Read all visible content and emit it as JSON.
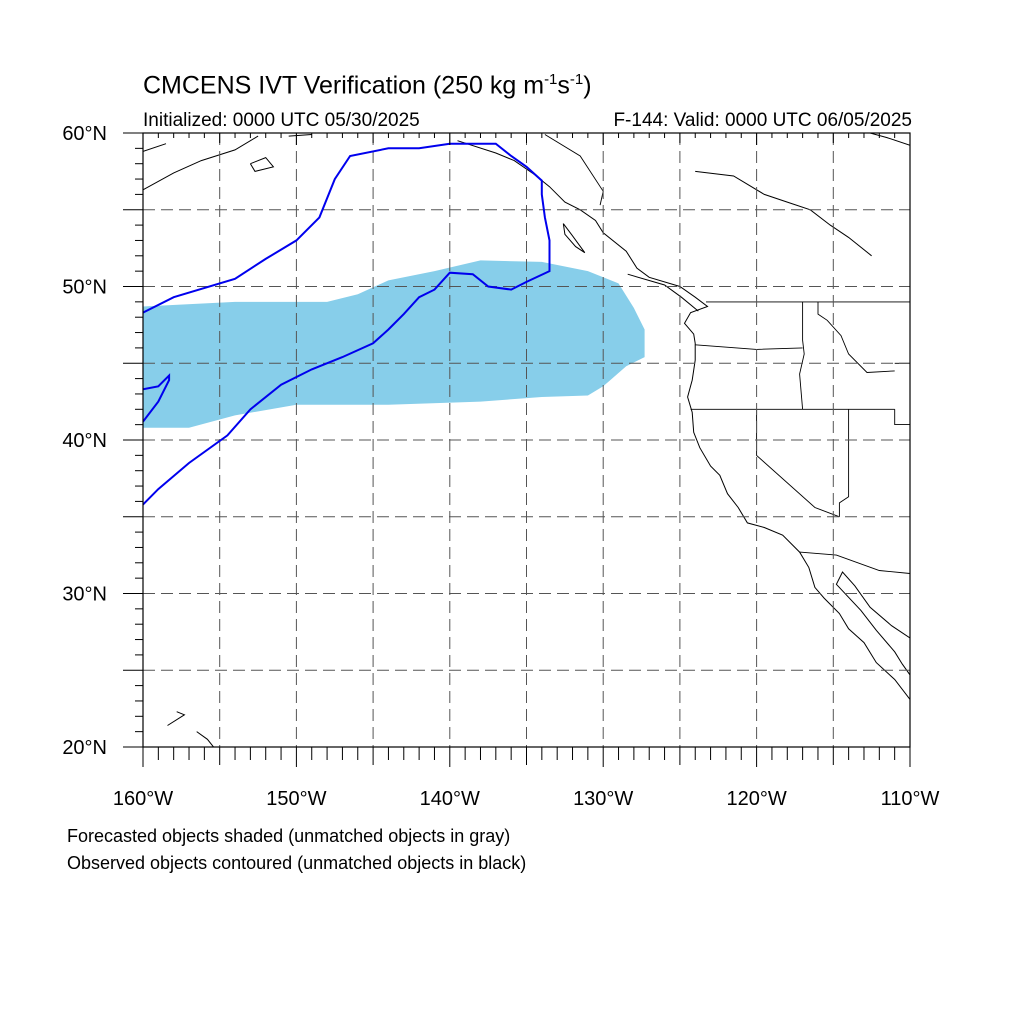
{
  "title": {
    "main": "CMCENS IVT Verification (250 kg m",
    "exp1": "-1",
    "mid": "s",
    "exp2": "-1",
    "close": ")"
  },
  "subtitle": {
    "initialized": "Initialized: 0000 UTC 05/30/2025",
    "valid": "F-144: Valid: 0000 UTC 06/05/2025"
  },
  "captions": [
    "Forecasted objects shaded (unmatched objects in gray)",
    "Observed objects contoured (unmatched objects in black)"
  ],
  "colors": {
    "forecast_fill": "#87ceea",
    "observed_contour": "#0000ee",
    "coastline": "#000000",
    "grid": "#555555"
  },
  "map": {
    "lon_range": [
      -160,
      -110
    ],
    "lat_range": [
      20,
      60
    ],
    "lon_ticks": [
      {
        "value": -160,
        "label": "160°W"
      },
      {
        "value": -150,
        "label": "150°W"
      },
      {
        "value": -140,
        "label": "140°W"
      },
      {
        "value": -130,
        "label": "130°W"
      },
      {
        "value": -120,
        "label": "120°W"
      },
      {
        "value": -110,
        "label": "110°W"
      }
    ],
    "lat_ticks": [
      {
        "value": 60,
        "label": "60°N"
      },
      {
        "value": 50,
        "label": "50°N"
      },
      {
        "value": 40,
        "label": "40°N"
      },
      {
        "value": 30,
        "label": "30°N"
      },
      {
        "value": 20,
        "label": "20°N"
      }
    ],
    "grid_lons": [
      -155,
      -150,
      -145,
      -140,
      -135,
      -130,
      -125,
      -120,
      -115
    ],
    "grid_lats": [
      25,
      30,
      35,
      40,
      45,
      50,
      55
    ]
  },
  "forecast_object": [
    [
      -160,
      48.7
    ],
    [
      -154,
      49.0
    ],
    [
      -148,
      49.0
    ],
    [
      -146,
      49.5
    ],
    [
      -144,
      50.4
    ],
    [
      -141,
      51.0
    ],
    [
      -138,
      51.7
    ],
    [
      -134,
      51.6
    ],
    [
      -131,
      51.0
    ],
    [
      -129,
      50.2
    ],
    [
      -128,
      48.6
    ],
    [
      -127.3,
      47.2
    ],
    [
      -127.3,
      45.4
    ],
    [
      -128.5,
      44.8
    ],
    [
      -130,
      43.5
    ],
    [
      -131,
      42.9
    ],
    [
      -134,
      42.8
    ],
    [
      -138,
      42.5
    ],
    [
      -144,
      42.3
    ],
    [
      -150,
      42.3
    ],
    [
      -154,
      41.6
    ],
    [
      -157,
      40.8
    ],
    [
      -160,
      40.8
    ]
  ],
  "observed_object": [
    [
      -160,
      48.3
    ],
    [
      -158,
      49.3
    ],
    [
      -154,
      50.5
    ],
    [
      -152,
      51.8
    ],
    [
      -150,
      53.0
    ],
    [
      -148.5,
      54.5
    ],
    [
      -147.5,
      57.0
    ],
    [
      -146.5,
      58.5
    ],
    [
      -144,
      59.0
    ],
    [
      -142,
      59.0
    ],
    [
      -140,
      59.3
    ],
    [
      -137,
      59.3
    ],
    [
      -136,
      58.5
    ],
    [
      -135,
      57.8
    ],
    [
      -134,
      56.9
    ],
    [
      -134,
      56.0
    ],
    [
      -133.8,
      54.5
    ],
    [
      -133.5,
      53.0
    ],
    [
      -133.5,
      51.0
    ],
    [
      -135,
      50.3
    ],
    [
      -136,
      49.8
    ],
    [
      -137.5,
      50.0
    ],
    [
      -138.5,
      50.8
    ],
    [
      -140,
      50.9
    ],
    [
      -141,
      49.8
    ],
    [
      -142,
      49.3
    ],
    [
      -143,
      48.2
    ],
    [
      -144,
      47.2
    ],
    [
      -145,
      46.3
    ],
    [
      -147,
      45.4
    ],
    [
      -149,
      44.6
    ],
    [
      -151,
      43.6
    ],
    [
      -153,
      42.0
    ],
    [
      -154.5,
      40.3
    ],
    [
      -157,
      38.5
    ],
    [
      -159,
      36.8
    ],
    [
      -160,
      35.8
    ]
  ],
  "observed_object_2": [
    [
      -160,
      41.2
    ],
    [
      -159,
      42.5
    ],
    [
      -158.3,
      43.9
    ],
    [
      -158.3,
      44.2
    ],
    [
      -159,
      43.5
    ],
    [
      -160,
      43.3
    ]
  ],
  "coastlines": [
    [
      [
        -160,
        56.3
      ],
      [
        -158,
        57.4
      ],
      [
        -156.2,
        58.2
      ],
      [
        -154,
        58.9
      ],
      [
        -152.5,
        59.8
      ]
    ],
    [
      [
        -160,
        58.8
      ],
      [
        -158.5,
        59.3
      ]
    ],
    [
      [
        -153,
        58.0
      ],
      [
        -152,
        58.4
      ],
      [
        -151.5,
        57.8
      ],
      [
        -152.7,
        57.5
      ],
      [
        -153,
        58.0
      ]
    ],
    [
      [
        -150.5,
        59.8
      ],
      [
        -149,
        59.9
      ]
    ],
    [
      [
        -139.5,
        59.5
      ],
      [
        -137,
        58.7
      ],
      [
        -135.8,
        58.2
      ],
      [
        -134.5,
        57.3
      ],
      [
        -133.5,
        56.5
      ],
      [
        -132.5,
        55.5
      ],
      [
        -131.5,
        55.0
      ],
      [
        -130.5,
        54.3
      ],
      [
        -130,
        53.5
      ],
      [
        -128.5,
        52.3
      ],
      [
        -127.8,
        51.2
      ],
      [
        -127,
        50.6
      ],
      [
        -125,
        50.0
      ],
      [
        -124,
        49.3
      ],
      [
        -123.2,
        48.7
      ],
      [
        -124.3,
        48.3
      ],
      [
        -124.7,
        47.6
      ],
      [
        -124.1,
        46.9
      ],
      [
        -124,
        46.3
      ],
      [
        -124,
        45.2
      ],
      [
        -124.2,
        43.9
      ],
      [
        -124.5,
        42.8
      ],
      [
        -124.2,
        41.8
      ],
      [
        -124.1,
        40.5
      ],
      [
        -123.7,
        39.5
      ],
      [
        -123,
        38.3
      ],
      [
        -122.4,
        37.7
      ],
      [
        -121.9,
        36.5
      ],
      [
        -121.2,
        35.6
      ],
      [
        -120.6,
        34.6
      ],
      [
        -119.5,
        34.3
      ],
      [
        -118.3,
        33.8
      ],
      [
        -117.2,
        32.7
      ],
      [
        -116.6,
        31.7
      ],
      [
        -116.2,
        30.4
      ],
      [
        -115.6,
        29.7
      ],
      [
        -114.6,
        28.7
      ],
      [
        -114.0,
        27.7
      ],
      [
        -113,
        26.8
      ],
      [
        -112.2,
        25.5
      ],
      [
        -111,
        24.4
      ],
      [
        -110,
        23.1
      ]
    ],
    [
      [
        -110,
        27.1
      ],
      [
        -111.2,
        27.9
      ],
      [
        -112.6,
        29.1
      ],
      [
        -113.6,
        30.5
      ],
      [
        -114.4,
        31.4
      ],
      [
        -114.8,
        30.6
      ],
      [
        -113.2,
        28.9
      ],
      [
        -112.2,
        27.6
      ],
      [
        -111,
        26.2
      ],
      [
        -110.5,
        25.4
      ],
      [
        -110,
        24.7
      ]
    ],
    [
      [
        -128.4,
        50.8
      ],
      [
        -126,
        50.1
      ],
      [
        -124.9,
        49.3
      ],
      [
        -123.8,
        48.4
      ]
    ],
    [
      [
        -132.6,
        54.1
      ],
      [
        -132.0,
        53.3
      ],
      [
        -131.2,
        52.2
      ],
      [
        -131.8,
        52.6
      ],
      [
        -132.5,
        53.4
      ],
      [
        -132.6,
        54.1
      ]
    ],
    [
      [
        -124,
        57.5
      ],
      [
        -121.5,
        57.2
      ],
      [
        -119.5,
        56.0
      ],
      [
        -118,
        55.5
      ],
      [
        -116.5,
        55.0
      ],
      [
        -115.2,
        54.0
      ],
      [
        -114,
        53.2
      ],
      [
        -112.5,
        52.0
      ]
    ],
    [
      [
        -110,
        59.2
      ],
      [
        -111.5,
        59.7
      ],
      [
        -112.6,
        60
      ]
    ],
    [
      [
        -157.8,
        22.3
      ],
      [
        -157.3,
        22.1
      ],
      [
        -158.4,
        21.4
      ]
    ],
    [
      [
        -156.5,
        21.0
      ],
      [
        -155.8,
        20.5
      ],
      [
        -155,
        19.5
      ]
    ]
  ],
  "boundaries": [
    [
      [
        -133.8,
        59.9
      ],
      [
        -131.5,
        58.5
      ],
      [
        -130,
        56.2
      ],
      [
        -130.2,
        55.3
      ]
    ],
    [
      [
        -123.3,
        49.0
      ],
      [
        -110,
        49.0
      ]
    ],
    [
      [
        -117,
        49.0
      ],
      [
        -117,
        46.5
      ],
      [
        -116.9,
        45.6
      ],
      [
        -117.2,
        44.3
      ],
      [
        -117,
        42.0
      ]
    ],
    [
      [
        -124.3,
        42.0
      ],
      [
        -111,
        42.0
      ]
    ],
    [
      [
        -124,
        46.2
      ],
      [
        -120,
        45.9
      ],
      [
        -117,
        46.0
      ]
    ],
    [
      [
        -120,
        42.0
      ],
      [
        -120,
        39.0
      ],
      [
        -116.2,
        35.6
      ],
      [
        -114.6,
        35.0
      ]
    ],
    [
      [
        -114,
        42.0
      ],
      [
        -114,
        36.3
      ],
      [
        -114.6,
        35.9
      ],
      [
        -114.6,
        35.0
      ]
    ],
    [
      [
        -117.2,
        32.7
      ],
      [
        -114.8,
        32.5
      ],
      [
        -112,
        31.5
      ],
      [
        -110,
        31.3
      ]
    ],
    [
      [
        -111,
        45.0
      ],
      [
        -110,
        45.0
      ]
    ],
    [
      [
        -111,
        42.0
      ],
      [
        -111,
        41.0
      ],
      [
        -110,
        41.0
      ]
    ],
    [
      [
        -116,
        49.0
      ],
      [
        -116,
        48.2
      ],
      [
        -115.4,
        47.8
      ],
      [
        -114.5,
        46.8
      ],
      [
        -114,
        45.6
      ],
      [
        -112.8,
        44.4
      ],
      [
        -111,
        44.5
      ]
    ]
  ]
}
